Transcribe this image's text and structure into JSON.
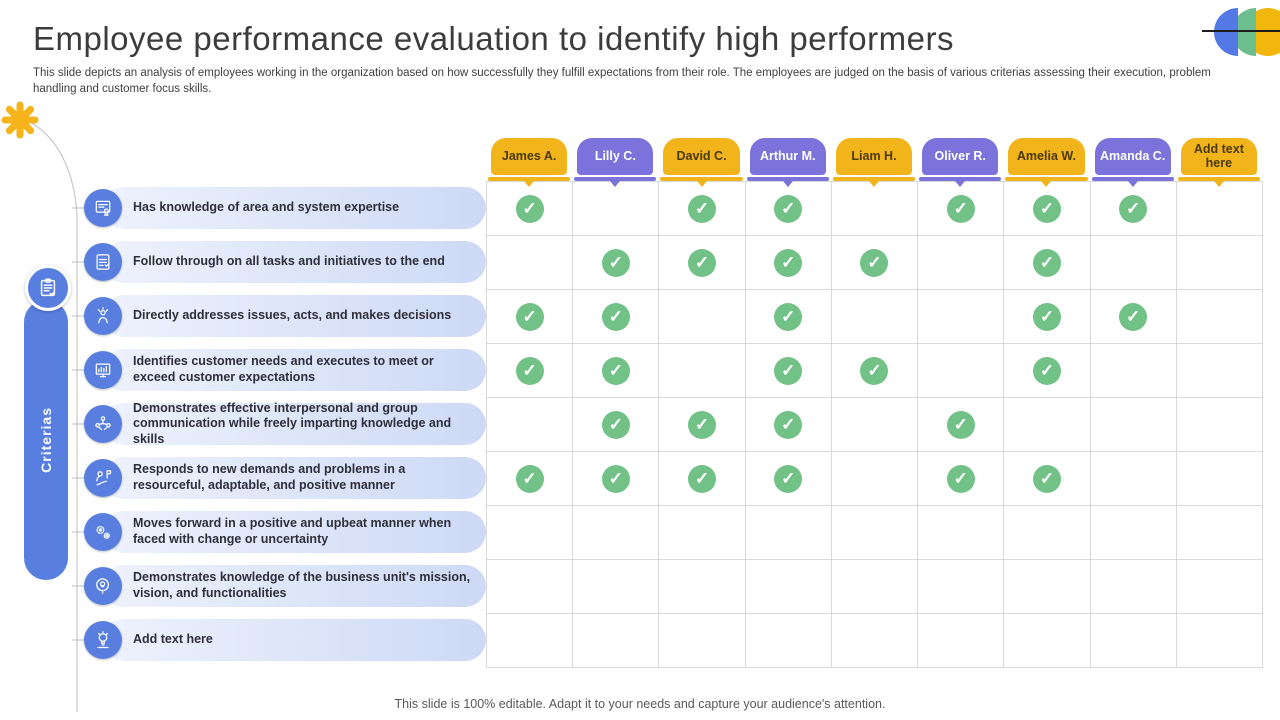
{
  "slide": {
    "title": "Employee performance evaluation to identify high performers",
    "subtitle": "This slide depicts an analysis of employees working in the organization based on how successfully they fulfill expectations from their role. The employees are judged on the basis of various criterias assessing their execution, problem handling and customer focus skills.",
    "footer": "This slide is 100% editable. Adapt it to your needs and capture your audience's attention."
  },
  "sidebar": {
    "label": "Criterias",
    "icon": "clipboard"
  },
  "colors": {
    "yellow": "#F2B41B",
    "purple": "#7B72DB",
    "blue": "#587EE0",
    "green_check": "#72C287",
    "grid_line": "#d9d9d9"
  },
  "table": {
    "columns": [
      {
        "label": "James A.",
        "color": "#F2B41B",
        "text_color": "#4A3A08",
        "placeholder": false
      },
      {
        "label": "Lilly C.",
        "color": "#7B72DB",
        "text_color": "#FFFFFF",
        "placeholder": false
      },
      {
        "label": "David C.",
        "color": "#F2B41B",
        "text_color": "#4A3A08",
        "placeholder": false
      },
      {
        "label": "Arthur M.",
        "color": "#7B72DB",
        "text_color": "#FFFFFF",
        "placeholder": false
      },
      {
        "label": "Liam H.",
        "color": "#F2B41B",
        "text_color": "#4A3A08",
        "placeholder": false
      },
      {
        "label": "Oliver R.",
        "color": "#7B72DB",
        "text_color": "#FFFFFF",
        "placeholder": false
      },
      {
        "label": "Amelia W.",
        "color": "#F2B41B",
        "text_color": "#4A3A08",
        "placeholder": false
      },
      {
        "label": "Amanda C.",
        "color": "#7B72DB",
        "text_color": "#FFFFFF",
        "placeholder": false
      },
      {
        "label": "Add text here",
        "color": "#F2B41B",
        "text_color": "#4A3A08",
        "placeholder": true
      }
    ],
    "rows": [
      {
        "label": "Has knowledge of area and system expertise",
        "icon": "certificate",
        "placeholder": false
      },
      {
        "label": "Follow through on all tasks and initiatives to the end",
        "icon": "task-check",
        "placeholder": false
      },
      {
        "label": "Directly addresses issues, acts, and makes decisions",
        "icon": "decision",
        "placeholder": false
      },
      {
        "label": "Identifies customer needs and executes to meet or exceed customer expectations",
        "icon": "customer-chart",
        "placeholder": false
      },
      {
        "label": "Demonstrates effective interpersonal and group communication while freely imparting knowledge and skills",
        "icon": "group-communication",
        "placeholder": false
      },
      {
        "label": "Responds to new demands and problems in a resourceful, adaptable, and positive manner",
        "icon": "adaptability",
        "placeholder": false
      },
      {
        "label": "Moves forward in a positive and upbeat manner when faced with change or uncertainty",
        "icon": "gears",
        "placeholder": false
      },
      {
        "label": "Demonstrates knowledge of the business unit's mission, vision, and functionalities",
        "icon": "mission-bulb",
        "placeholder": false
      },
      {
        "label": "Add text here",
        "icon": "lightbulb",
        "placeholder": true
      }
    ],
    "check_glyph": "✓",
    "checks": [
      [
        1,
        0,
        1,
        1,
        0,
        1,
        1,
        1,
        0
      ],
      [
        0,
        1,
        1,
        1,
        1,
        0,
        1,
        0,
        0
      ],
      [
        1,
        1,
        0,
        1,
        0,
        0,
        1,
        1,
        0
      ],
      [
        1,
        1,
        0,
        1,
        1,
        0,
        1,
        0,
        0
      ],
      [
        0,
        1,
        1,
        1,
        0,
        1,
        0,
        0,
        0
      ],
      [
        1,
        1,
        1,
        1,
        0,
        1,
        1,
        0,
        0
      ],
      [
        0,
        0,
        0,
        0,
        0,
        0,
        0,
        0,
        0
      ],
      [
        0,
        0,
        0,
        0,
        0,
        0,
        0,
        0,
        0
      ],
      [
        0,
        0,
        0,
        0,
        0,
        0,
        0,
        0,
        0
      ]
    ]
  }
}
